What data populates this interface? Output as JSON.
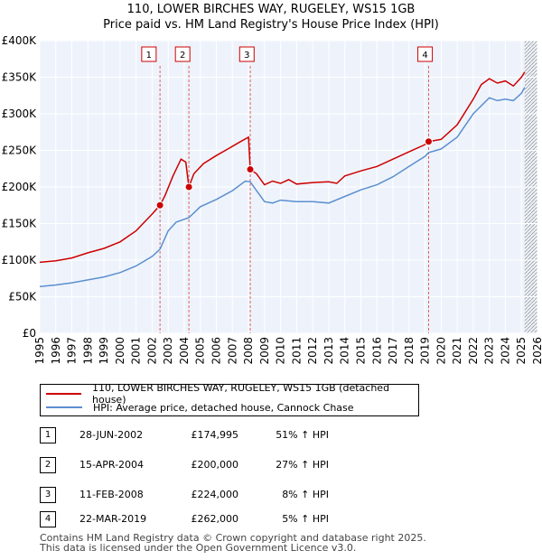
{
  "chart_data": {
    "type": "line",
    "title": "110, LOWER BIRCHES WAY, RUGELEY, WS15 1GB",
    "subtitle": "Price paid vs. HM Land Registry's House Price Index (HPI)",
    "xlim": [
      1995,
      2026
    ],
    "ylim": [
      0,
      400000
    ],
    "x_ticks": [
      "1995",
      "1996",
      "1997",
      "1998",
      "1999",
      "2000",
      "2001",
      "2002",
      "2003",
      "2004",
      "2005",
      "2006",
      "2007",
      "2008",
      "2009",
      "2010",
      "2011",
      "2012",
      "2013",
      "2014",
      "2015",
      "2016",
      "2017",
      "2018",
      "2019",
      "2020",
      "2021",
      "2022",
      "2023",
      "2024",
      "2025",
      "2026"
    ],
    "y_ticks": [
      {
        "value": 0,
        "label": "£0"
      },
      {
        "value": 50000,
        "label": "£50K"
      },
      {
        "value": 100000,
        "label": "£100K"
      },
      {
        "value": 150000,
        "label": "£150K"
      },
      {
        "value": 200000,
        "label": "£200K"
      },
      {
        "value": 250000,
        "label": "£250K"
      },
      {
        "value": 300000,
        "label": "£300K"
      },
      {
        "value": 350000,
        "label": "£350K"
      },
      {
        "value": 400000,
        "label": "£400K"
      }
    ],
    "grid": true,
    "series": [
      {
        "name": "110, LOWER BIRCHES WAY, RUGELEY, WS15 1GB (detached house)",
        "color": "#cc0000",
        "points": [
          [
            1995.0,
            97000
          ],
          [
            1996.0,
            99000
          ],
          [
            1997.0,
            103000
          ],
          [
            1998.0,
            110000
          ],
          [
            1999.0,
            116000
          ],
          [
            2000.0,
            125000
          ],
          [
            2001.0,
            140000
          ],
          [
            2002.0,
            163000
          ],
          [
            2002.49,
            174995
          ],
          [
            2002.8,
            188000
          ],
          [
            2003.3,
            215000
          ],
          [
            2003.8,
            238000
          ],
          [
            2004.1,
            234000
          ],
          [
            2004.29,
            200000
          ],
          [
            2004.6,
            218000
          ],
          [
            2005.2,
            232000
          ],
          [
            2006.0,
            243000
          ],
          [
            2006.8,
            253000
          ],
          [
            2007.5,
            262000
          ],
          [
            2008.0,
            268000
          ],
          [
            2008.11,
            224000
          ],
          [
            2008.5,
            218000
          ],
          [
            2009.0,
            203000
          ],
          [
            2009.5,
            208000
          ],
          [
            2010.0,
            205000
          ],
          [
            2010.5,
            210000
          ],
          [
            2011.0,
            204000
          ],
          [
            2012.0,
            206000
          ],
          [
            2013.0,
            207000
          ],
          [
            2013.5,
            205000
          ],
          [
            2014.0,
            215000
          ],
          [
            2015.0,
            222000
          ],
          [
            2016.0,
            228000
          ],
          [
            2017.0,
            238000
          ],
          [
            2018.0,
            248000
          ],
          [
            2019.0,
            258000
          ],
          [
            2019.22,
            262000
          ],
          [
            2020.0,
            265000
          ],
          [
            2021.0,
            285000
          ],
          [
            2022.0,
            320000
          ],
          [
            2022.5,
            340000
          ],
          [
            2023.0,
            348000
          ],
          [
            2023.5,
            342000
          ],
          [
            2024.0,
            345000
          ],
          [
            2024.5,
            338000
          ],
          [
            2025.0,
            350000
          ],
          [
            2025.2,
            357000
          ]
        ]
      },
      {
        "name": "HPI: Average price, detached house, Cannock Chase",
        "color": "#5b8fd0",
        "points": [
          [
            1995.0,
            64000
          ],
          [
            1996.0,
            66000
          ],
          [
            1997.0,
            69000
          ],
          [
            1998.0,
            73000
          ],
          [
            1999.0,
            77000
          ],
          [
            2000.0,
            83000
          ],
          [
            2001.0,
            92000
          ],
          [
            2002.0,
            105000
          ],
          [
            2002.49,
            115000
          ],
          [
            2003.0,
            140000
          ],
          [
            2003.5,
            152000
          ],
          [
            2004.29,
            158000
          ],
          [
            2005.0,
            173000
          ],
          [
            2006.0,
            183000
          ],
          [
            2007.0,
            195000
          ],
          [
            2007.8,
            208000
          ],
          [
            2008.11,
            207000
          ],
          [
            2008.5,
            195000
          ],
          [
            2009.0,
            180000
          ],
          [
            2009.5,
            178000
          ],
          [
            2010.0,
            182000
          ],
          [
            2011.0,
            180000
          ],
          [
            2012.0,
            180000
          ],
          [
            2013.0,
            178000
          ],
          [
            2014.0,
            187000
          ],
          [
            2015.0,
            196000
          ],
          [
            2016.0,
            203000
          ],
          [
            2017.0,
            214000
          ],
          [
            2018.0,
            228000
          ],
          [
            2019.0,
            242000
          ],
          [
            2019.22,
            247000
          ],
          [
            2020.0,
            252000
          ],
          [
            2021.0,
            268000
          ],
          [
            2022.0,
            300000
          ],
          [
            2023.0,
            322000
          ],
          [
            2023.5,
            318000
          ],
          [
            2024.0,
            320000
          ],
          [
            2024.5,
            318000
          ],
          [
            2025.0,
            328000
          ],
          [
            2025.2,
            336000
          ]
        ]
      }
    ],
    "transactions": [
      {
        "num": "1",
        "x": 2002.49,
        "price": 174995,
        "label_x": 2001.8
      },
      {
        "num": "2",
        "x": 2004.29,
        "price": 200000,
        "label_x": 2003.9
      },
      {
        "num": "3",
        "x": 2008.11,
        "price": 224000,
        "label_x": 2007.9
      },
      {
        "num": "4",
        "x": 2019.22,
        "price": 262000,
        "label_x": 2019.0
      }
    ],
    "projection_start": 2025.2
  },
  "legend": {
    "red_label": "110, LOWER BIRCHES WAY, RUGELEY, WS15 1GB (detached house)",
    "blue_label": "HPI: Average price, detached house, Cannock Chase"
  },
  "table": [
    {
      "num": "1",
      "date": "28-JUN-2002",
      "price": "£174,995",
      "hpi": "51% ↑ HPI"
    },
    {
      "num": "2",
      "date": "15-APR-2004",
      "price": "£200,000",
      "hpi": "27% ↑ HPI"
    },
    {
      "num": "3",
      "date": "11-FEB-2008",
      "price": "£224,000",
      "hpi": "8% ↑ HPI"
    },
    {
      "num": "4",
      "date": "22-MAR-2019",
      "price": "£262,000",
      "hpi": "5% ↑ HPI"
    }
  ],
  "footer": {
    "line1": "Contains HM Land Registry data © Crown copyright and database right 2025.",
    "line2": "This data is licensed under the Open Government Licence v3.0."
  }
}
